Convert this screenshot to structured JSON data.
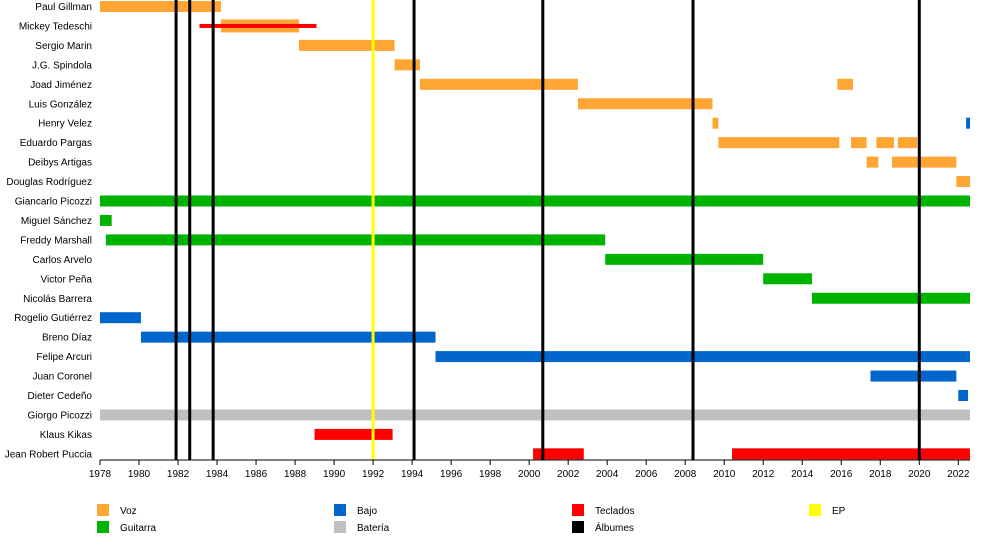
{
  "colors": {
    "voz": "#FFA533",
    "guitarra": "#00B300",
    "bajo": "#0066CC",
    "bateria": "#C0C0C0",
    "teclados": "#FF0000",
    "ep": "#FFFF00",
    "albumes": "#000000"
  },
  "chart_data": {
    "type": "timeline",
    "xlim": [
      1978,
      2022.6
    ],
    "x_ticks": [
      "1978",
      "1980",
      "1982",
      "1984",
      "1986",
      "1988",
      "1990",
      "1992",
      "1994",
      "1996",
      "1998",
      "2000",
      "2002",
      "2004",
      "2006",
      "2008",
      "2010",
      "2012",
      "2014",
      "2016",
      "2018",
      "2020",
      "2022"
    ],
    "members": [
      "Paul Gillman",
      "Mickey Tedeschi",
      "Sergio Marin",
      "J.G. Spindola",
      "Joad Jiménez",
      "Luis González",
      "Henry Velez",
      "Eduardo Pargas",
      "Deibys Artigas",
      "Douglas Rodríguez",
      "Giancarlo Picozzi",
      "Miguel Sánchez",
      "Freddy Marshall",
      "Carlos Arvelo",
      "Victor Peña",
      "Nicolás Barrera",
      "Rogelio Gutiérrez",
      "Breno Díaz",
      "Felipe Arcuri",
      "Juan Coronel",
      "Dieter Cedeño",
      "Giorgo Picozzi",
      "Klaus Kikas",
      "Jean Robert Puccia"
    ],
    "bars": [
      {
        "row": 0,
        "role": "voz",
        "start": 1978.0,
        "end": 1984.2
      },
      {
        "row": 1,
        "role": "voz",
        "start": 1984.2,
        "end": 1988.2,
        "thick": true
      },
      {
        "row": 1,
        "role": "teclados",
        "start": 1983.1,
        "end": 1989.1,
        "thin": true
      },
      {
        "row": 2,
        "role": "voz",
        "start": 1988.2,
        "end": 1993.1
      },
      {
        "row": 3,
        "role": "voz",
        "start": 1993.1,
        "end": 1994.4
      },
      {
        "row": 4,
        "role": "voz",
        "start": 1994.4,
        "end": 2002.5
      },
      {
        "row": 4,
        "role": "voz",
        "start": 2015.8,
        "end": 2016.6
      },
      {
        "row": 5,
        "role": "voz",
        "start": 2002.5,
        "end": 2009.4
      },
      {
        "row": 6,
        "role": "voz",
        "start": 2009.4,
        "end": 2009.7
      },
      {
        "row": 6,
        "role": "bajo",
        "start": 2022.4,
        "end": 2022.6
      },
      {
        "row": 7,
        "role": "voz",
        "start": 2009.7,
        "end": 2015.9
      },
      {
        "row": 7,
        "role": "voz",
        "start": 2016.5,
        "end": 2017.3
      },
      {
        "row": 7,
        "role": "voz",
        "start": 2017.8,
        "end": 2018.7
      },
      {
        "row": 7,
        "role": "voz",
        "start": 2018.9,
        "end": 2019.9
      },
      {
        "row": 8,
        "role": "voz",
        "start": 2017.3,
        "end": 2017.9
      },
      {
        "row": 8,
        "role": "voz",
        "start": 2018.6,
        "end": 2021.9
      },
      {
        "row": 9,
        "role": "voz",
        "start": 2021.9,
        "end": 2022.6
      },
      {
        "row": 10,
        "role": "guitarra",
        "start": 1978.0,
        "end": 2022.6
      },
      {
        "row": 11,
        "role": "guitarra",
        "start": 1978.0,
        "end": 1978.6
      },
      {
        "row": 12,
        "role": "guitarra",
        "start": 1978.3,
        "end": 2003.9
      },
      {
        "row": 13,
        "role": "guitarra",
        "start": 2003.9,
        "end": 2012.0
      },
      {
        "row": 14,
        "role": "guitarra",
        "start": 2012.0,
        "end": 2014.5
      },
      {
        "row": 15,
        "role": "guitarra",
        "start": 2014.5,
        "end": 2022.6
      },
      {
        "row": 16,
        "role": "bajo",
        "start": 1978.0,
        "end": 1980.1
      },
      {
        "row": 17,
        "role": "bajo",
        "start": 1980.1,
        "end": 1995.2
      },
      {
        "row": 18,
        "role": "bajo",
        "start": 1995.2,
        "end": 2022.6
      },
      {
        "row": 19,
        "role": "bajo",
        "start": 2017.5,
        "end": 2021.9
      },
      {
        "row": 20,
        "role": "bajo",
        "start": 2022.0,
        "end": 2022.5
      },
      {
        "row": 21,
        "role": "bateria",
        "start": 1978.0,
        "end": 2022.6
      },
      {
        "row": 22,
        "role": "teclados",
        "start": 1989.0,
        "end": 1993.0
      },
      {
        "row": 23,
        "role": "teclados",
        "start": 2000.2,
        "end": 2002.8
      },
      {
        "row": 23,
        "role": "teclados",
        "start": 2010.4,
        "end": 2022.6
      }
    ],
    "albums": [
      1981.9,
      1982.6,
      1983.8,
      1994.1,
      2000.7,
      2008.4,
      2020.0
    ],
    "ep": [
      1992.0
    ]
  },
  "legend": [
    {
      "key": "voz",
      "label": "Voz"
    },
    {
      "key": "guitarra",
      "label": "Guitarra"
    },
    {
      "key": "bajo",
      "label": "Bajo"
    },
    {
      "key": "bateria",
      "label": "Batería"
    },
    {
      "key": "teclados",
      "label": "Teclados"
    },
    {
      "key": "albumes",
      "label": "Álbumes"
    },
    {
      "key": "ep",
      "label": "EP"
    }
  ]
}
